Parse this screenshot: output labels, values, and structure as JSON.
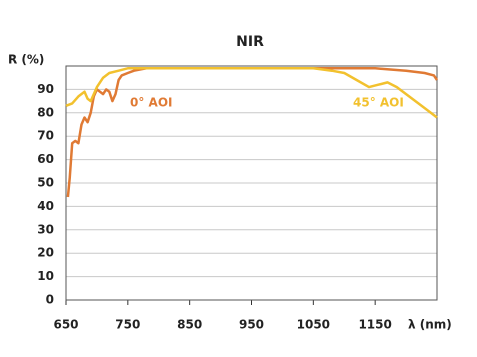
{
  "chart_data": {
    "type": "line",
    "title": "NIR",
    "y_label": "R (%)",
    "x_label": "λ (nm)",
    "xlim": [
      650,
      1250
    ],
    "xticks": [
      650,
      750,
      850,
      950,
      1050,
      1150
    ],
    "ylim": [
      0,
      100
    ],
    "yticks": [
      0,
      10,
      20,
      30,
      40,
      50,
      60,
      70,
      80,
      90
    ],
    "grid": true,
    "series": [
      {
        "name": "0° AOI",
        "color": "#e07a34",
        "x": [
          653,
          656,
          660,
          665,
          670,
          675,
          680,
          685,
          690,
          695,
          700,
          705,
          710,
          715,
          720,
          725,
          730,
          735,
          740,
          750,
          760,
          780,
          800,
          900,
          1000,
          1100,
          1150,
          1200,
          1230,
          1245,
          1250
        ],
        "values": [
          44,
          52,
          67,
          68,
          67,
          75,
          78,
          76,
          80,
          87,
          90,
          89,
          88,
          90,
          89,
          85,
          88,
          94,
          96,
          97,
          98,
          99,
          99,
          99,
          99,
          99,
          99,
          98,
          97,
          96,
          94
        ]
      },
      {
        "name": "45° AOI",
        "color": "#f2c12e",
        "x": [
          650,
          660,
          670,
          680,
          685,
          690,
          700,
          710,
          720,
          735,
          750,
          800,
          900,
          1000,
          1050,
          1080,
          1100,
          1120,
          1140,
          1155,
          1170,
          1185,
          1200,
          1220,
          1240,
          1250
        ],
        "values": [
          83,
          84,
          87,
          89,
          86,
          85,
          91,
          95,
          97,
          98,
          99,
          99,
          99,
          99,
          99,
          98,
          97,
          94,
          91,
          92,
          93,
          91,
          88,
          84,
          80,
          78
        ]
      }
    ]
  }
}
